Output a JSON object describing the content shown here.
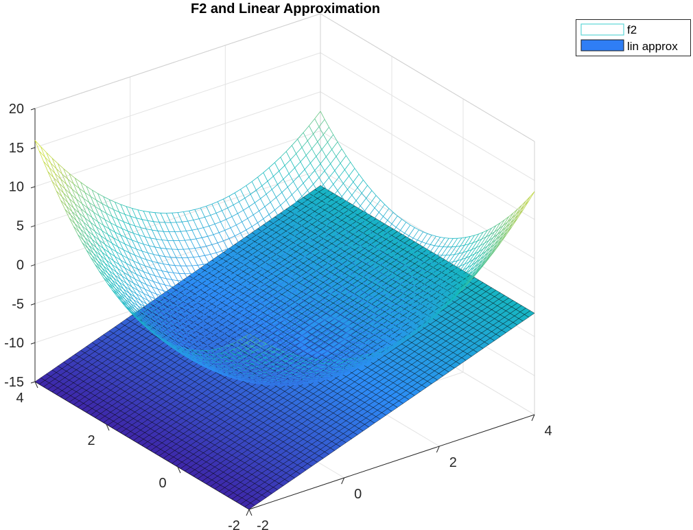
{
  "chart_data": {
    "type": "surface",
    "title": "F2 and Linear Approximation",
    "xlabel": "",
    "ylabel": "",
    "zlabel": "",
    "xlim": [
      -2,
      4
    ],
    "ylim": [
      -2,
      4
    ],
    "zlim": [
      -15,
      20
    ],
    "x_ticks": [
      -2,
      0,
      2,
      4
    ],
    "y_ticks": [
      -2,
      0,
      2,
      4
    ],
    "z_ticks": [
      -15,
      -10,
      -5,
      0,
      5,
      10,
      15,
      20
    ],
    "z_tick_labels": [
      "-15",
      "-10",
      "-5",
      "0",
      "5",
      "10",
      "15",
      "20"
    ],
    "x_tick_labels": [
      "-2",
      "0",
      "2",
      "4"
    ],
    "y_tick_labels": [
      "-2",
      "0",
      "2",
      "4"
    ],
    "grid": true,
    "legend_position": "top-right",
    "series": [
      {
        "name": "f2",
        "kind": "mesh",
        "grid_n": 50,
        "domain_x": [
          -2,
          4
        ],
        "domain_y": [
          -2,
          4
        ],
        "sample_points": [
          {
            "x": -2,
            "y": 4,
            "z": 16.5
          },
          {
            "x": 4,
            "y": -2,
            "z": 13.0
          },
          {
            "x": 4,
            "y": 4,
            "z": 6.0
          },
          {
            "x": -2,
            "y": -2,
            "z": 9.0
          },
          {
            "x": 1,
            "y": 1,
            "z": -10.5
          }
        ],
        "colormap": [
          "#3e26a8",
          "#2d8df7",
          "#14bcba",
          "#b0ce53",
          "#f8fa0d"
        ]
      },
      {
        "name": "lin approx",
        "kind": "plane",
        "grid_n": 50,
        "domain_x": [
          -2,
          4
        ],
        "domain_y": [
          -2,
          4
        ],
        "corner_points": [
          {
            "x": -2,
            "y": 4,
            "z": -15.0
          },
          {
            "x": -2,
            "y": -2,
            "z": -15.0
          },
          {
            "x": 4,
            "y": 4,
            "z": -2.0
          },
          {
            "x": 4,
            "y": -2,
            "z": -2.0
          }
        ],
        "edge_color": "#000000"
      }
    ],
    "legend": [
      {
        "label": "f2",
        "swatch": "outline",
        "color": "#5cd6d6"
      },
      {
        "label": "lin approx",
        "swatch": "fill",
        "color": "#2f7ef5"
      }
    ]
  }
}
